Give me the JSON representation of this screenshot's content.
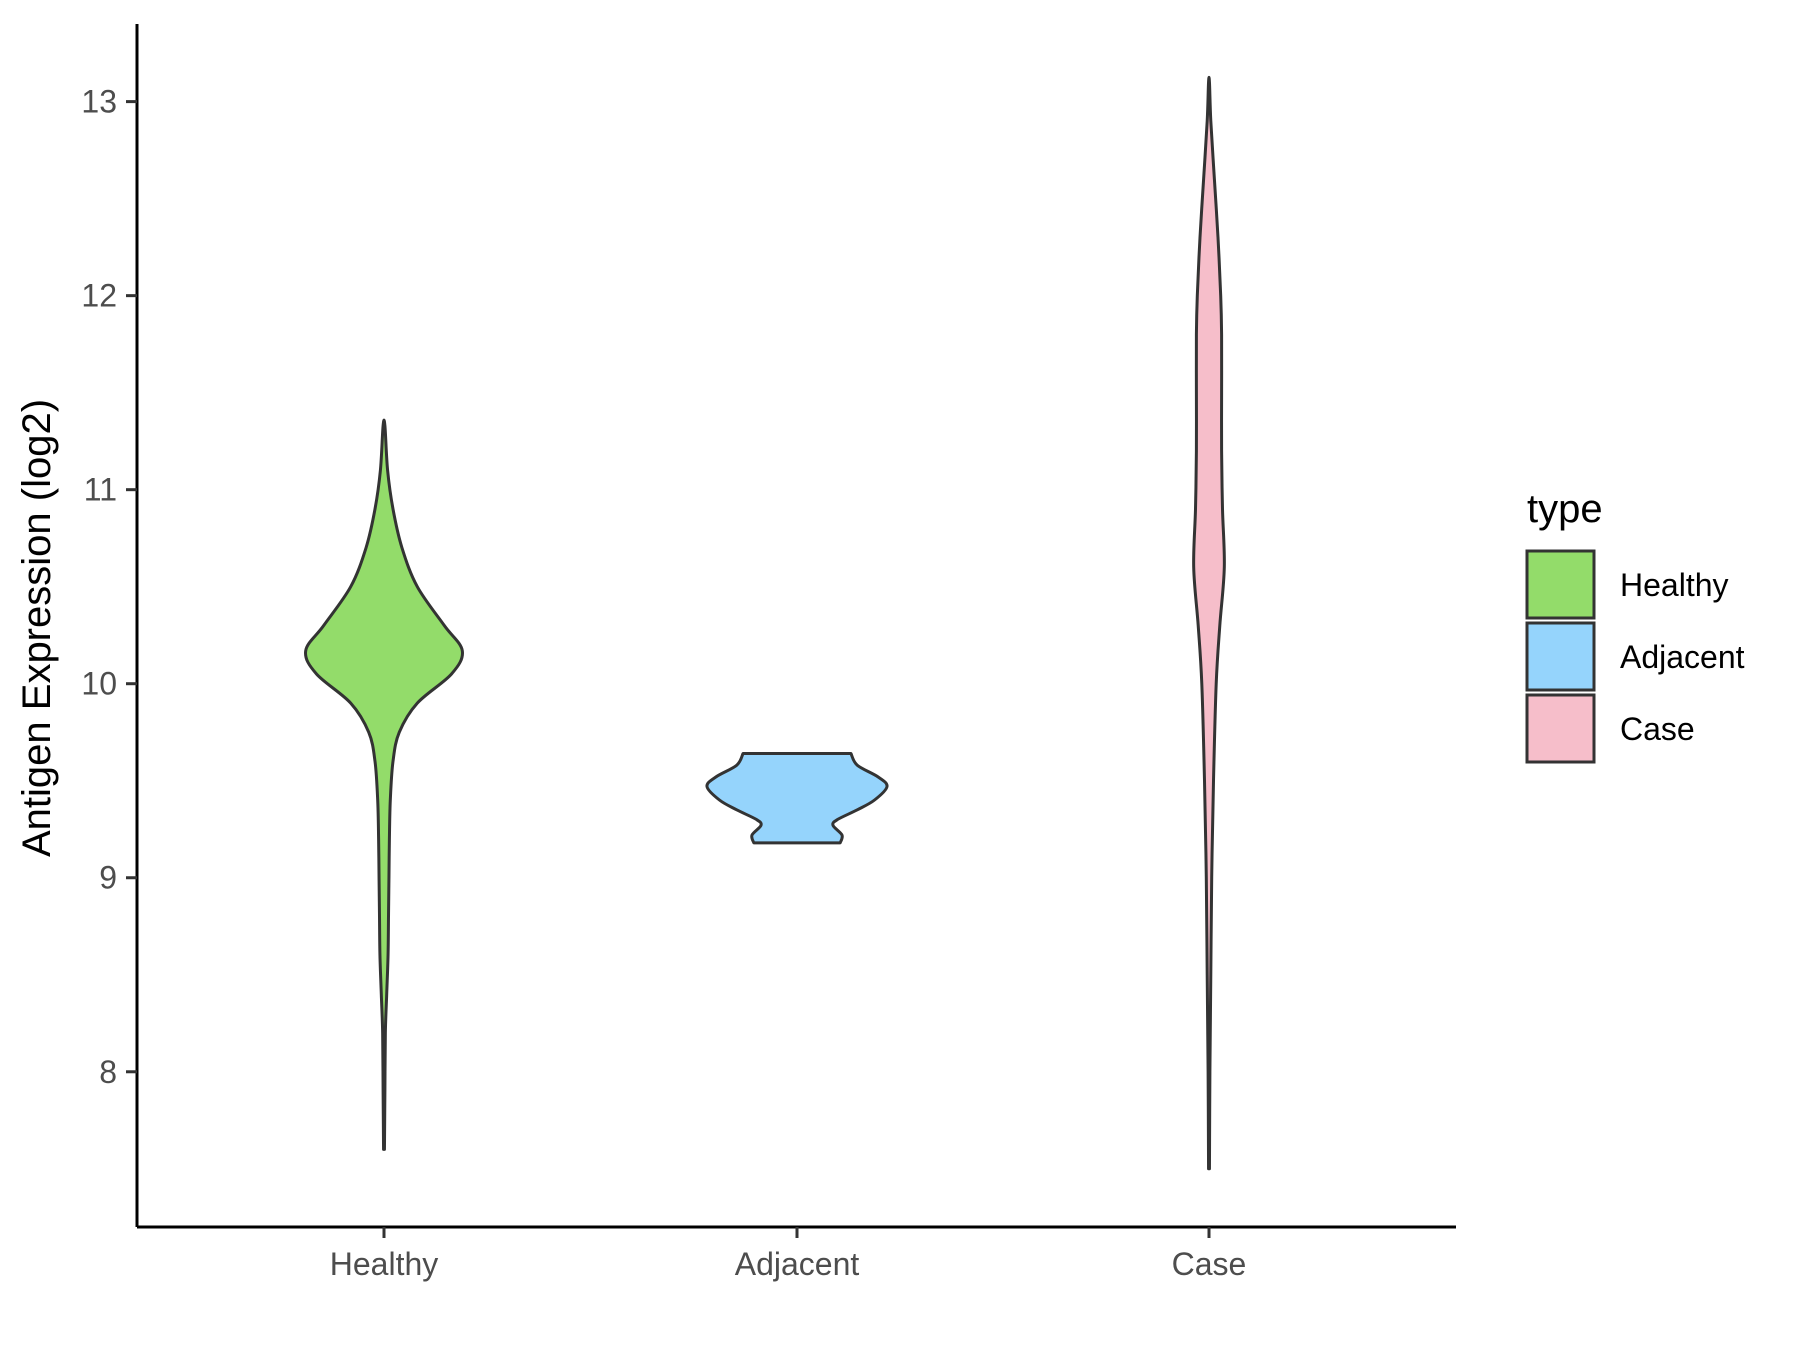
{
  "chart_data": {
    "type": "violin",
    "title": "",
    "xlabel": "",
    "ylabel": "Antigen Expression (log2)",
    "ylim": [
      7.2,
      13.4
    ],
    "yticks": [
      8,
      9,
      10,
      11,
      12,
      13
    ],
    "categories": [
      "Healthy",
      "Adjacent",
      "Case"
    ],
    "grid": false,
    "legend": {
      "title": "type",
      "position": "right",
      "items": [
        {
          "label": "Healthy",
          "color": "#93DC6A"
        },
        {
          "label": "Adjacent",
          "color": "#95D4FC"
        },
        {
          "label": "Case",
          "color": "#F6BECA"
        }
      ]
    },
    "series": [
      {
        "name": "Healthy",
        "color": "#93DC6A",
        "y_range": [
          7.6,
          11.33
        ],
        "density_profile": [
          [
            7.6,
            0.005
          ],
          [
            7.9,
            0.01
          ],
          [
            8.2,
            0.015
          ],
          [
            8.4,
            0.03
          ],
          [
            8.6,
            0.045
          ],
          [
            8.8,
            0.05
          ],
          [
            9.0,
            0.055
          ],
          [
            9.2,
            0.06
          ],
          [
            9.4,
            0.07
          ],
          [
            9.6,
            0.1
          ],
          [
            9.75,
            0.17
          ],
          [
            9.9,
            0.37
          ],
          [
            10.05,
            0.75
          ],
          [
            10.17,
            0.87
          ],
          [
            10.3,
            0.67
          ],
          [
            10.5,
            0.37
          ],
          [
            10.7,
            0.2
          ],
          [
            10.9,
            0.1
          ],
          [
            11.1,
            0.04
          ],
          [
            11.33,
            0.01
          ]
        ]
      },
      {
        "name": "Adjacent",
        "color": "#95D4FC",
        "y_range": [
          9.18,
          9.64
        ],
        "density_profile": [
          [
            9.18,
            0.48
          ],
          [
            9.22,
            0.5
          ],
          [
            9.27,
            0.4
          ],
          [
            9.3,
            0.45
          ],
          [
            9.35,
            0.67
          ],
          [
            9.4,
            0.86
          ],
          [
            9.47,
            1.0
          ],
          [
            9.52,
            0.9
          ],
          [
            9.58,
            0.67
          ],
          [
            9.64,
            0.6
          ]
        ]
      },
      {
        "name": "Case",
        "color": "#F6BECA",
        "y_range": [
          7.5,
          13.1
        ],
        "density_profile": [
          [
            7.5,
            0.005
          ],
          [
            8.0,
            0.01
          ],
          [
            8.5,
            0.02
          ],
          [
            9.0,
            0.03
          ],
          [
            9.5,
            0.05
          ],
          [
            10.0,
            0.08
          ],
          [
            10.3,
            0.12
          ],
          [
            10.6,
            0.17
          ],
          [
            10.9,
            0.15
          ],
          [
            11.2,
            0.14
          ],
          [
            11.5,
            0.14
          ],
          [
            11.8,
            0.14
          ],
          [
            12.0,
            0.13
          ],
          [
            12.3,
            0.1
          ],
          [
            12.6,
            0.06
          ],
          [
            12.9,
            0.02
          ],
          [
            13.1,
            0.005
          ]
        ]
      }
    ]
  }
}
